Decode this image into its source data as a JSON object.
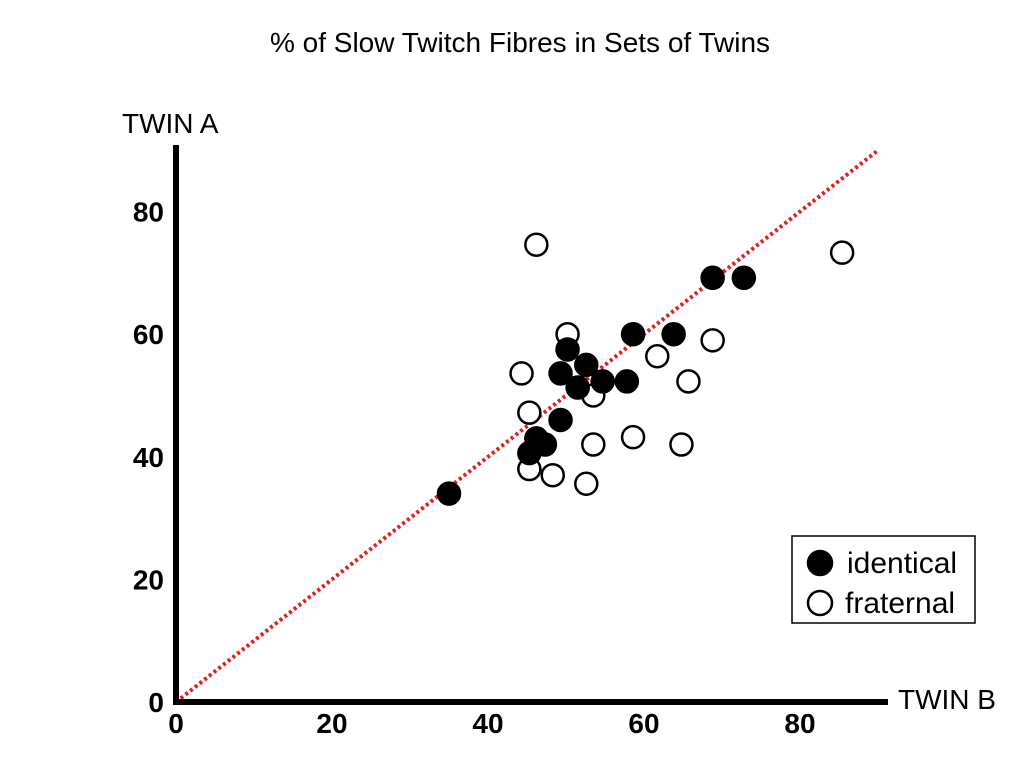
{
  "chart_data": {
    "type": "scatter",
    "title": "% of Slow Twitch Fibres in Sets of Twins",
    "xlabel": "TWIN B",
    "ylabel": "TWIN A",
    "xlim": [
      0,
      90
    ],
    "ylim": [
      0,
      90
    ],
    "x_ticks": [
      "0",
      "20",
      "40",
      "60",
      "80"
    ],
    "y_ticks": [
      "0",
      "20",
      "40",
      "60",
      "80"
    ],
    "grid": false,
    "legend_position": "bottom-right",
    "reference_line": {
      "from": [
        0,
        0
      ],
      "to": [
        90,
        90
      ],
      "color": "#e02020",
      "style": "dotted"
    },
    "series": [
      {
        "name": "identical",
        "marker": "filled-circle",
        "color": "#000000",
        "points": [
          [
            35,
            34
          ],
          [
            45.3,
            40.6
          ],
          [
            46.2,
            43
          ],
          [
            47.3,
            42
          ],
          [
            49.3,
            46
          ],
          [
            49.3,
            53.6
          ],
          [
            50.2,
            57.5
          ],
          [
            51.5,
            51.3
          ],
          [
            52.6,
            55
          ],
          [
            54.7,
            52.3
          ],
          [
            57.8,
            52.3
          ],
          [
            58.6,
            60
          ],
          [
            63.8,
            60
          ],
          [
            68.8,
            69.2
          ],
          [
            72.8,
            69.2
          ]
        ]
      },
      {
        "name": "fraternal",
        "marker": "open-circle",
        "color": "#000000",
        "points": [
          [
            46.2,
            74.6
          ],
          [
            50.2,
            60
          ],
          [
            44.3,
            53.6
          ],
          [
            45.3,
            47.2
          ],
          [
            45.3,
            38
          ],
          [
            48.3,
            37
          ],
          [
            52.6,
            35.6
          ],
          [
            53.5,
            42
          ],
          [
            53.5,
            50
          ],
          [
            58.6,
            43.2
          ],
          [
            61.7,
            56.4
          ],
          [
            64.8,
            42
          ],
          [
            65.7,
            52.3
          ],
          [
            68.8,
            59
          ],
          [
            85.4,
            73.3
          ]
        ]
      }
    ]
  }
}
